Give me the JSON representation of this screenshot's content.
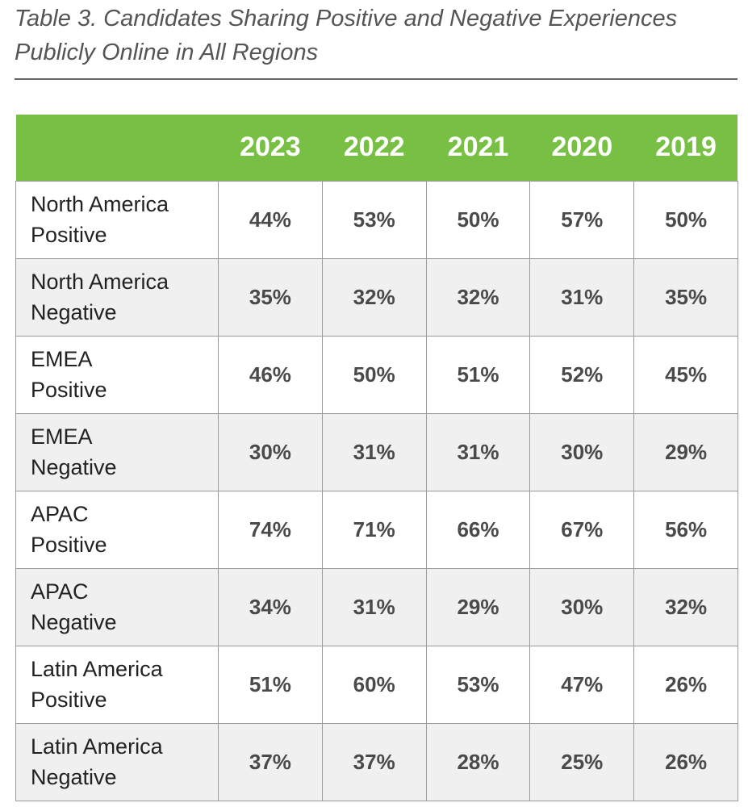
{
  "caption": {
    "line1": "Table 3. Candidates Sharing Positive and Negative Experiences",
    "line2": "Publicly Online in All Regions"
  },
  "table": {
    "header_color": "#77c043",
    "years": [
      "2023",
      "2022",
      "2021",
      "2020",
      "2019"
    ],
    "rows": [
      {
        "region": "North America",
        "type": "Positive",
        "values": [
          "44%",
          "53%",
          "50%",
          "57%",
          "50%"
        ]
      },
      {
        "region": "North America",
        "type": "Negative",
        "values": [
          "35%",
          "32%",
          "32%",
          "31%",
          "35%"
        ]
      },
      {
        "region": "EMEA",
        "type": "Positive",
        "values": [
          "46%",
          "50%",
          "51%",
          "52%",
          "45%"
        ]
      },
      {
        "region": "EMEA",
        "type": "Negative",
        "values": [
          "30%",
          "31%",
          "31%",
          "30%",
          "29%"
        ]
      },
      {
        "region": "APAC",
        "type": "Positive",
        "values": [
          "74%",
          "71%",
          "66%",
          "67%",
          "56%"
        ]
      },
      {
        "region": "APAC",
        "type": "Negative",
        "values": [
          "34%",
          "31%",
          "29%",
          "30%",
          "32%"
        ]
      },
      {
        "region": "Latin America",
        "type": "Positive",
        "values": [
          "51%",
          "60%",
          "53%",
          "47%",
          "26%"
        ]
      },
      {
        "region": "Latin America",
        "type": "Negative",
        "values": [
          "37%",
          "37%",
          "28%",
          "25%",
          "26%"
        ]
      }
    ]
  }
}
